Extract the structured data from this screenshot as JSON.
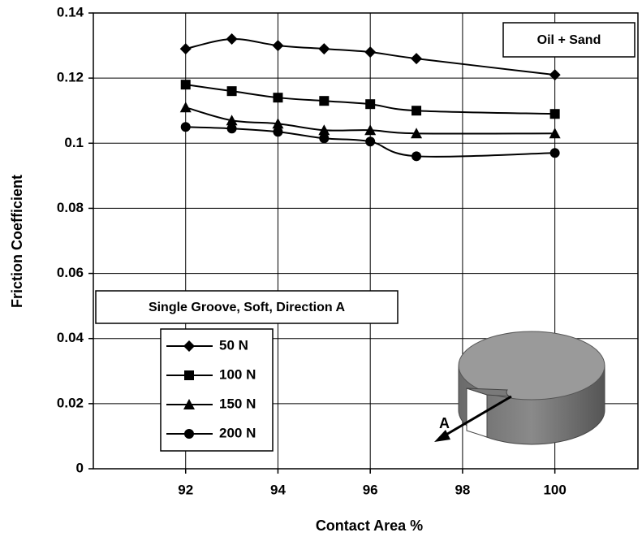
{
  "chart_data": {
    "type": "line",
    "x_label": "Contact Area %",
    "y_label": "Friction Coefficient",
    "annotations": [
      "Oil + Sand",
      "Single Groove, Soft, Direction A",
      "A"
    ],
    "x": [
      92,
      93,
      94,
      95,
      96,
      97,
      100
    ],
    "series": [
      {
        "name": "50 N",
        "color": "#000000",
        "marker": "diamond",
        "values": [
          0.129,
          0.132,
          0.13,
          0.129,
          0.128,
          0.126,
          0.121
        ]
      },
      {
        "name": "100 N",
        "color": "#000000",
        "marker": "square",
        "values": [
          0.118,
          0.116,
          0.114,
          0.113,
          0.112,
          0.11,
          0.109
        ]
      },
      {
        "name": "150 N",
        "color": "#000000",
        "marker": "triangle",
        "values": [
          0.111,
          0.107,
          0.106,
          0.104,
          0.104,
          0.103,
          0.103
        ]
      },
      {
        "name": "200 N",
        "color": "#000000",
        "marker": "circle",
        "values": [
          0.105,
          0.1045,
          0.1035,
          0.1015,
          0.1005,
          0.096,
          0.097
        ]
      }
    ],
    "xlim": [
      90,
      101.8
    ],
    "xticks": [
      92,
      94,
      96,
      98,
      100
    ],
    "ylim": [
      0,
      0.14
    ],
    "yticks": [
      0,
      0.02,
      0.04,
      0.06,
      0.08,
      0.1,
      0.12,
      0.14
    ],
    "grid": true,
    "smooth": true
  }
}
